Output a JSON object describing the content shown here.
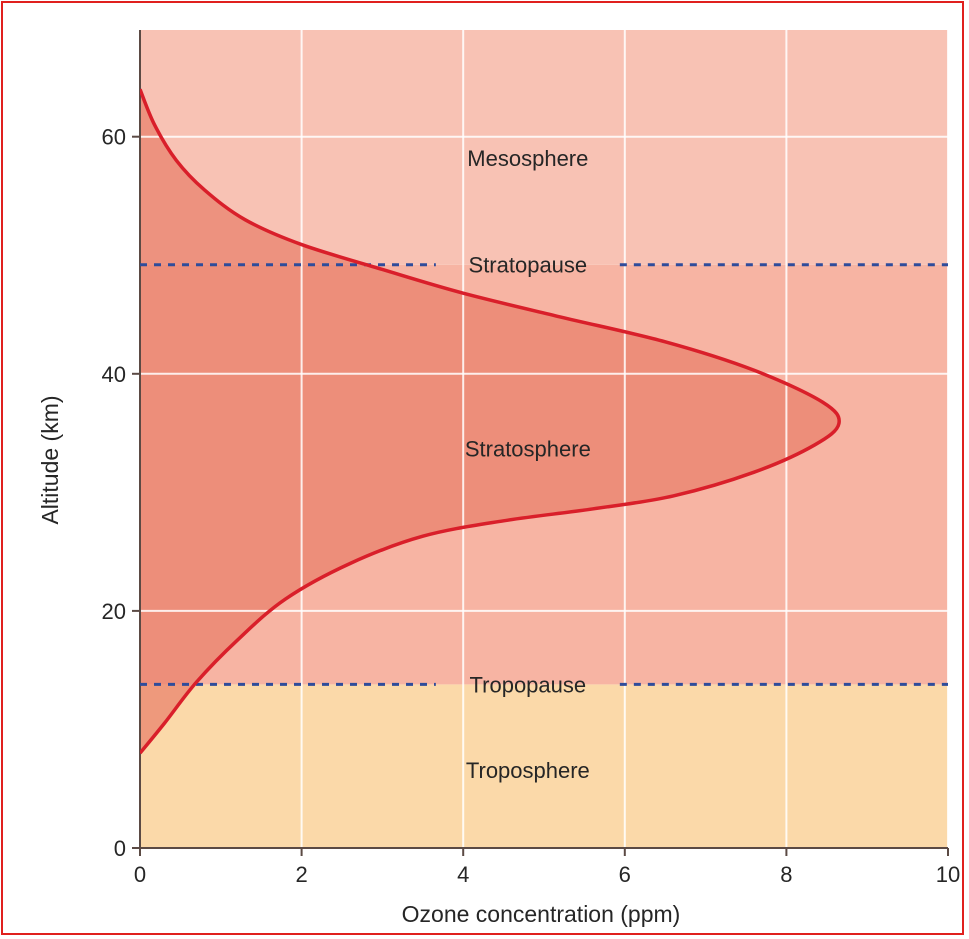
{
  "chart_data": {
    "type": "line",
    "title": "",
    "xlabel": "Ozone concentration (ppm)",
    "ylabel": "Altitude (km)",
    "xlim": [
      0,
      10
    ],
    "ylim": [
      0,
      69
    ],
    "x_ticks": [
      0,
      2,
      4,
      6,
      8,
      10
    ],
    "y_ticks": [
      0,
      20,
      40,
      60
    ],
    "grid": true,
    "series": [
      {
        "name": "",
        "color": "#d91f2a",
        "points": [
          {
            "x": 0,
            "y": 8
          },
          {
            "x": 0.3,
            "y": 10.5
          },
          {
            "x": 0.7,
            "y": 14
          },
          {
            "x": 1.2,
            "y": 17.5
          },
          {
            "x": 1.8,
            "y": 21
          },
          {
            "x": 2.6,
            "y": 24
          },
          {
            "x": 3.5,
            "y": 26.3
          },
          {
            "x": 4.5,
            "y": 27.6
          },
          {
            "x": 5.6,
            "y": 28.6
          },
          {
            "x": 6.6,
            "y": 29.7
          },
          {
            "x": 7.6,
            "y": 31.7
          },
          {
            "x": 8.35,
            "y": 34
          },
          {
            "x": 8.65,
            "y": 35.8
          },
          {
            "x": 8.45,
            "y": 37.6
          },
          {
            "x": 7.6,
            "y": 40.3
          },
          {
            "x": 6.5,
            "y": 42.7
          },
          {
            "x": 5.2,
            "y": 44.8
          },
          {
            "x": 4.0,
            "y": 46.8
          },
          {
            "x": 3.0,
            "y": 48.8
          },
          {
            "x": 2.0,
            "y": 50.9
          },
          {
            "x": 1.3,
            "y": 53
          },
          {
            "x": 0.8,
            "y": 55.5
          },
          {
            "x": 0.45,
            "y": 58
          },
          {
            "x": 0.18,
            "y": 61
          },
          {
            "x": 0,
            "y": 64
          }
        ]
      }
    ],
    "boundaries": [
      {
        "label": "Stratopause",
        "altitude": 49.2
      },
      {
        "label": "Tropopause",
        "altitude": 13.8
      }
    ],
    "regions": [
      {
        "label": "Troposphere",
        "from": 0,
        "to": 13.8,
        "label_y": 6.6,
        "color": "#fbd9a9"
      },
      {
        "label": "Stratosphere",
        "from": 13.8,
        "to": 49.2,
        "label_y": 33.7,
        "color": "#f7b4a3"
      },
      {
        "label": "Mesosphere",
        "from": 49.2,
        "to": 69,
        "label_y": 58.2,
        "color": "#f8c2b4"
      }
    ],
    "under_curve_color": "#e97f6b",
    "dashed_line_color": "#2f4c9b"
  }
}
